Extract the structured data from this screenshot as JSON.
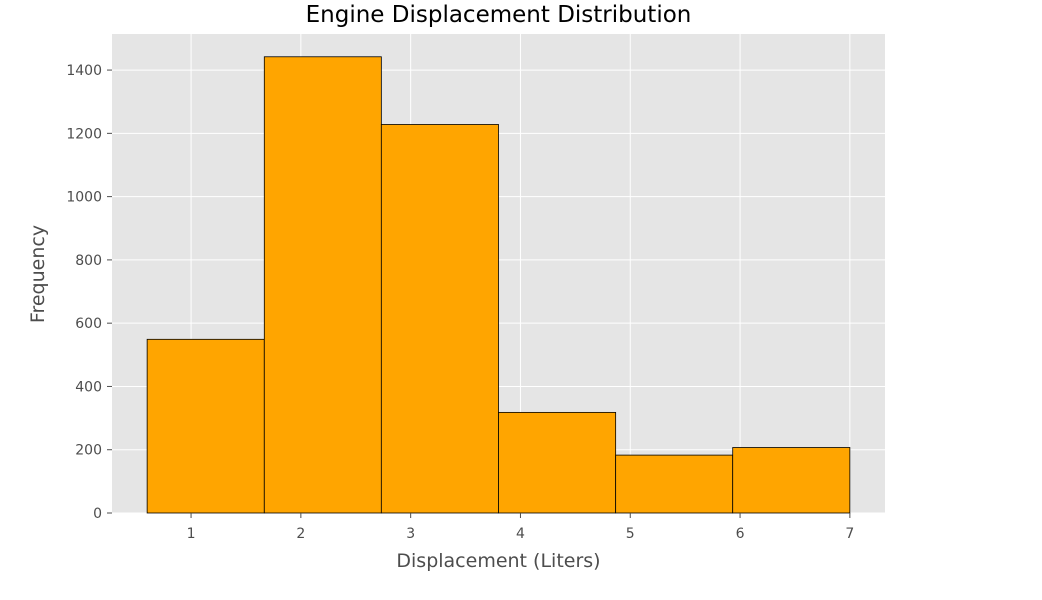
{
  "chart_data": {
    "type": "bar",
    "subtype": "histogram",
    "title": "Engine Displacement Distribution",
    "xlabel": "Displacement (Liters)",
    "ylabel": "Frequency",
    "bins": [
      {
        "start": 0.6,
        "end": 1.667,
        "count": 549
      },
      {
        "start": 1.667,
        "end": 2.733,
        "count": 1442
      },
      {
        "start": 2.733,
        "end": 3.8,
        "count": 1228
      },
      {
        "start": 3.8,
        "end": 4.867,
        "count": 318
      },
      {
        "start": 4.867,
        "end": 5.933,
        "count": 183
      },
      {
        "start": 5.933,
        "end": 7.0,
        "count": 207
      }
    ],
    "xlim": [
      0.28,
      7.32
    ],
    "ylim": [
      0,
      1514
    ],
    "xticks": [
      "1",
      "2",
      "3",
      "4",
      "5",
      "6",
      "7"
    ],
    "xtick_values": [
      1,
      2,
      3,
      4,
      5,
      6,
      7
    ],
    "yticks": [
      "0",
      "200",
      "400",
      "600",
      "800",
      "1000",
      "1200",
      "1400"
    ],
    "ytick_values": [
      0,
      200,
      400,
      600,
      800,
      1000,
      1200,
      1400
    ],
    "grid": true,
    "legend": "none",
    "colors": {
      "bar_fill": "#FFA500",
      "bar_edge": "#000000",
      "plot_background": "#E5E5E5",
      "grid": "#FFFFFF",
      "tick_text": "#4D4D4D",
      "title_text": "#000000"
    }
  }
}
